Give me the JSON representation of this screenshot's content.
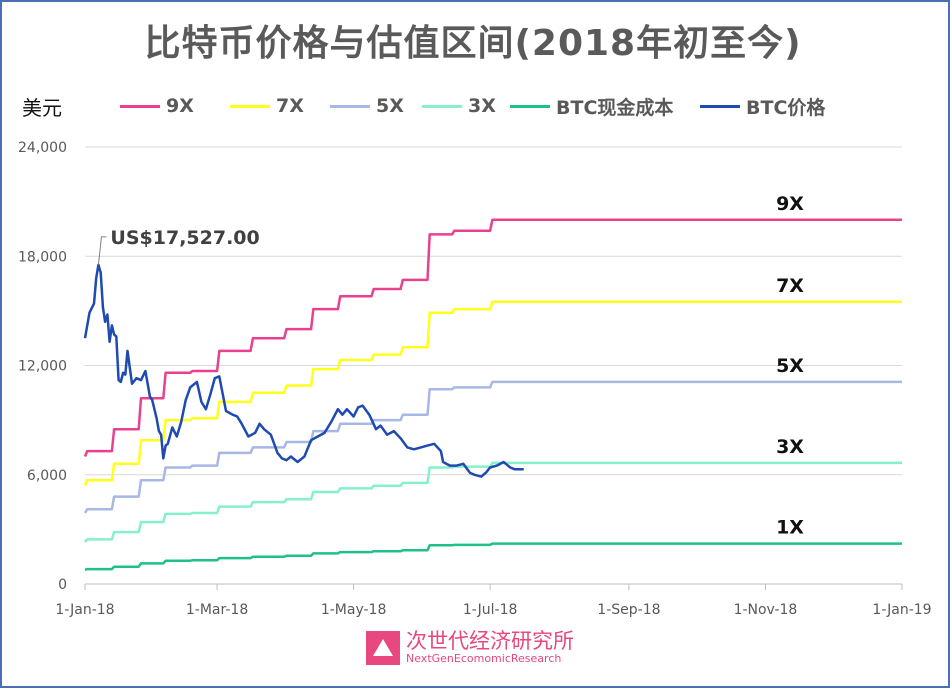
{
  "title": "比特币价格与估值区间(2018年初至今)",
  "unit_label": "美元",
  "watermark": {
    "name_cn": "次世代经济研究所",
    "name_en": "NextGenEcomomicResearch",
    "icon": "triangle-logo-icon"
  },
  "chart_data": {
    "type": "line",
    "title": "比特币价格与估值区间(2018年初至今)",
    "ylabel": "美元",
    "xlabel": "",
    "ylim": [
      0,
      24000
    ],
    "y_ticks": [
      0,
      6000,
      12000,
      18000,
      24000
    ],
    "y_tick_labels": [
      "0",
      "6,000",
      "12,000",
      "18,000",
      "24,000"
    ],
    "x_ticks": [
      "2018-01-01",
      "2018-03-01",
      "2018-05-01",
      "2018-07-01",
      "2018-09-01",
      "2018-11-01",
      "2019-01-01"
    ],
    "x_tick_labels": [
      "1-Jan-18",
      "1-Mar-18",
      "1-May-18",
      "1-Jul-18",
      "1-Sep-18",
      "1-Nov-18",
      "1-Jan-19"
    ],
    "grid": true,
    "legend_position": "top",
    "series": [
      {
        "name": "9X",
        "color": "#e8418f",
        "end_label": "9X",
        "x": [
          "2018-01-01",
          "2018-01-02",
          "2018-01-13",
          "2018-01-14",
          "2018-01-25",
          "2018-01-26",
          "2018-02-05",
          "2018-02-06",
          "2018-02-17",
          "2018-02-18",
          "2018-03-01",
          "2018-03-02",
          "2018-03-16",
          "2018-03-17",
          "2018-03-31",
          "2018-04-01",
          "2018-04-12",
          "2018-04-13",
          "2018-04-24",
          "2018-04-25",
          "2018-05-09",
          "2018-05-10",
          "2018-05-22",
          "2018-05-23",
          "2018-06-03",
          "2018-06-04",
          "2018-06-14",
          "2018-06-15",
          "2018-07-01",
          "2018-07-02",
          "2019-01-01"
        ],
        "values": [
          7000,
          7300,
          7300,
          8500,
          8500,
          10200,
          10200,
          11600,
          11600,
          11700,
          11700,
          12800,
          12800,
          13500,
          13500,
          14000,
          14000,
          15100,
          15100,
          15800,
          15800,
          16200,
          16200,
          16700,
          16700,
          19200,
          19200,
          19400,
          19400,
          20000,
          20000
        ]
      },
      {
        "name": "7X",
        "color": "#ffff1a",
        "end_label": "7X",
        "x": [
          "2018-01-01",
          "2018-01-02",
          "2018-01-13",
          "2018-01-14",
          "2018-01-25",
          "2018-01-26",
          "2018-02-05",
          "2018-02-06",
          "2018-02-17",
          "2018-02-18",
          "2018-03-01",
          "2018-03-02",
          "2018-03-16",
          "2018-03-17",
          "2018-03-31",
          "2018-04-01",
          "2018-04-12",
          "2018-04-13",
          "2018-04-24",
          "2018-04-25",
          "2018-05-09",
          "2018-05-10",
          "2018-05-22",
          "2018-05-23",
          "2018-06-03",
          "2018-06-04",
          "2018-06-14",
          "2018-06-15",
          "2018-07-01",
          "2018-07-02",
          "2019-01-01"
        ],
        "values": [
          5400,
          5700,
          5700,
          6600,
          6600,
          7900,
          7900,
          9000,
          9000,
          9100,
          9100,
          10000,
          10000,
          10500,
          10500,
          10900,
          10900,
          11800,
          11800,
          12300,
          12300,
          12600,
          12600,
          13000,
          13000,
          14900,
          14900,
          15100,
          15100,
          15500,
          15500
        ]
      },
      {
        "name": "5X",
        "color": "#a8b8e6",
        "end_label": "5X",
        "x": [
          "2018-01-01",
          "2018-01-02",
          "2018-01-13",
          "2018-01-14",
          "2018-01-25",
          "2018-01-26",
          "2018-02-05",
          "2018-02-06",
          "2018-02-17",
          "2018-02-18",
          "2018-03-01",
          "2018-03-02",
          "2018-03-16",
          "2018-03-17",
          "2018-03-31",
          "2018-04-01",
          "2018-04-12",
          "2018-04-13",
          "2018-04-24",
          "2018-04-25",
          "2018-05-09",
          "2018-05-10",
          "2018-05-22",
          "2018-05-23",
          "2018-06-03",
          "2018-06-04",
          "2018-06-14",
          "2018-06-15",
          "2018-07-01",
          "2018-07-02",
          "2019-01-01"
        ],
        "values": [
          3900,
          4100,
          4100,
          4800,
          4800,
          5700,
          5700,
          6400,
          6400,
          6500,
          6500,
          7200,
          7200,
          7500,
          7500,
          7800,
          7800,
          8400,
          8400,
          8800,
          8800,
          9000,
          9000,
          9300,
          9300,
          10700,
          10700,
          10800,
          10800,
          11100,
          11100
        ]
      },
      {
        "name": "3X",
        "color": "#86f0cc",
        "end_label": "3X",
        "x": [
          "2018-01-01",
          "2018-01-02",
          "2018-01-13",
          "2018-01-14",
          "2018-01-25",
          "2018-01-26",
          "2018-02-05",
          "2018-02-06",
          "2018-02-17",
          "2018-02-18",
          "2018-03-01",
          "2018-03-02",
          "2018-03-16",
          "2018-03-17",
          "2018-03-31",
          "2018-04-01",
          "2018-04-12",
          "2018-04-13",
          "2018-04-24",
          "2018-04-25",
          "2018-05-09",
          "2018-05-10",
          "2018-05-22",
          "2018-05-23",
          "2018-06-03",
          "2018-06-04",
          "2018-06-14",
          "2018-06-15",
          "2018-07-01",
          "2018-07-02",
          "2019-01-01"
        ],
        "values": [
          2300,
          2450,
          2450,
          2850,
          2850,
          3400,
          3400,
          3850,
          3850,
          3900,
          3900,
          4250,
          4250,
          4500,
          4500,
          4650,
          4650,
          5050,
          5050,
          5250,
          5250,
          5400,
          5400,
          5550,
          5550,
          6400,
          6400,
          6450,
          6450,
          6650,
          6650
        ]
      },
      {
        "name": "BTC现金成本",
        "color": "#1fc08a",
        "end_label": "1X",
        "x": [
          "2018-01-01",
          "2018-01-02",
          "2018-01-13",
          "2018-01-14",
          "2018-01-25",
          "2018-01-26",
          "2018-02-05",
          "2018-02-06",
          "2018-02-17",
          "2018-02-18",
          "2018-03-01",
          "2018-03-02",
          "2018-03-16",
          "2018-03-17",
          "2018-03-31",
          "2018-04-01",
          "2018-04-12",
          "2018-04-13",
          "2018-04-24",
          "2018-04-25",
          "2018-05-09",
          "2018-05-10",
          "2018-05-22",
          "2018-05-23",
          "2018-06-03",
          "2018-06-04",
          "2018-06-14",
          "2018-06-15",
          "2018-07-01",
          "2018-07-02",
          "2019-01-01"
        ],
        "values": [
          780,
          820,
          820,
          950,
          950,
          1130,
          1130,
          1280,
          1280,
          1300,
          1300,
          1420,
          1420,
          1500,
          1500,
          1550,
          1550,
          1680,
          1680,
          1750,
          1750,
          1800,
          1800,
          1850,
          1850,
          2130,
          2130,
          2150,
          2150,
          2220,
          2220
        ]
      },
      {
        "name": "BTC价格",
        "color": "#1f4ab0",
        "x": [
          "2018-01-01",
          "2018-01-03",
          "2018-01-05",
          "2018-01-06",
          "2018-01-07",
          "2018-01-08",
          "2018-01-09",
          "2018-01-10",
          "2018-01-11",
          "2018-01-12",
          "2018-01-13",
          "2018-01-14",
          "2018-01-15",
          "2018-01-16",
          "2018-01-17",
          "2018-01-18",
          "2018-01-19",
          "2018-01-20",
          "2018-01-22",
          "2018-01-24",
          "2018-01-26",
          "2018-01-28",
          "2018-01-30",
          "2018-01-31",
          "2018-02-02",
          "2018-02-03",
          "2018-02-04",
          "2018-02-05",
          "2018-02-06",
          "2018-02-07",
          "2018-02-09",
          "2018-02-11",
          "2018-02-13",
          "2018-02-15",
          "2018-02-17",
          "2018-02-20",
          "2018-02-22",
          "2018-02-24",
          "2018-02-26",
          "2018-02-28",
          "2018-03-02",
          "2018-03-05",
          "2018-03-08",
          "2018-03-10",
          "2018-03-12",
          "2018-03-15",
          "2018-03-18",
          "2018-03-20",
          "2018-03-22",
          "2018-03-25",
          "2018-03-28",
          "2018-03-30",
          "2018-04-01",
          "2018-04-03",
          "2018-04-06",
          "2018-04-09",
          "2018-04-12",
          "2018-04-15",
          "2018-04-18",
          "2018-04-21",
          "2018-04-24",
          "2018-04-26",
          "2018-04-28",
          "2018-05-01",
          "2018-05-03",
          "2018-05-05",
          "2018-05-08",
          "2018-05-11",
          "2018-05-13",
          "2018-05-16",
          "2018-05-19",
          "2018-05-22",
          "2018-05-25",
          "2018-05-28",
          "2018-05-31",
          "2018-06-03",
          "2018-06-06",
          "2018-06-09",
          "2018-06-10",
          "2018-06-13",
          "2018-06-16",
          "2018-06-19",
          "2018-06-22",
          "2018-06-24",
          "2018-06-27",
          "2018-06-29",
          "2018-07-01",
          "2018-07-04",
          "2018-07-07",
          "2018-07-10",
          "2018-07-12",
          "2018-07-14",
          "2018-07-16"
        ],
        "values": [
          13500,
          14900,
          15400,
          16800,
          17527,
          17100,
          15200,
          14400,
          14800,
          13300,
          14200,
          13700,
          13600,
          11200,
          11100,
          11600,
          11500,
          12800,
          11000,
          11300,
          11200,
          11700,
          10300,
          10100,
          9100,
          8400,
          8200,
          6900,
          7600,
          7700,
          8600,
          8100,
          8900,
          10100,
          10800,
          11100,
          10000,
          9600,
          10400,
          11300,
          11400,
          9500,
          9300,
          9200,
          8800,
          8100,
          8300,
          8800,
          8500,
          8200,
          7200,
          6900,
          6800,
          7000,
          6700,
          7000,
          7900,
          8100,
          8300,
          8900,
          9600,
          9300,
          9600,
          9200,
          9700,
          9800,
          9300,
          8500,
          8700,
          8200,
          8400,
          8000,
          7500,
          7400,
          7500,
          7600,
          7700,
          7300,
          6700,
          6500,
          6500,
          6600,
          6100,
          6000,
          5900,
          6100,
          6400,
          6500,
          6700,
          6400,
          6300,
          6300,
          6300
        ]
      }
    ],
    "annotations": [
      {
        "text": "US$17,527.00",
        "x": "2018-01-07",
        "y": 17527
      }
    ]
  }
}
